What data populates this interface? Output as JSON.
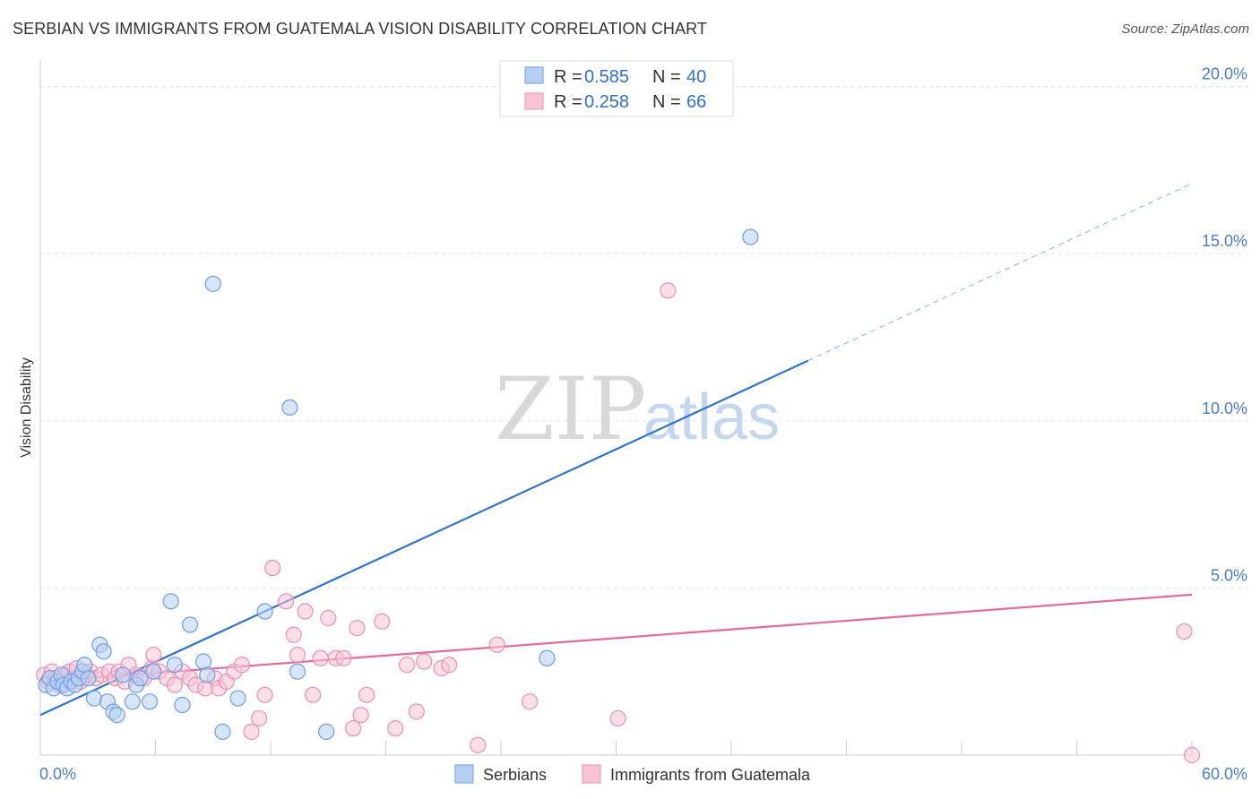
{
  "title": "SERBIAN VS IMMIGRANTS FROM GUATEMALA VISION DISABILITY CORRELATION CHART",
  "source": "Source: ZipAtlas.com",
  "watermark": {
    "zip": "ZIP",
    "atlas": "atlas"
  },
  "colors": {
    "blue": "#6d9ee6",
    "blue_fill": "#b7cff3",
    "pink": "#ee8fb0",
    "pink_fill": "#f7c4d5",
    "blue_line": "#2f74d0",
    "pink_line": "#e56a98"
  },
  "chart_data": {
    "type": "scatter",
    "title": "SERBIAN VS IMMIGRANTS FROM GUATEMALA VISION DISABILITY CORRELATION CHART",
    "ylabel": "Vision Disability",
    "xlabel": "",
    "xlim": [
      0,
      60
    ],
    "ylim": [
      0,
      20.5
    ],
    "x_tick_labels": [
      "0.0%",
      "60.0%"
    ],
    "y_ticks": [
      5,
      10,
      15,
      20
    ],
    "y_tick_labels": [
      "5.0%",
      "10.0%",
      "15.0%",
      "20.0%"
    ],
    "grid": true,
    "legend": [
      {
        "name": "Serbians",
        "r_label": "R = ",
        "r": "0.585",
        "n_label": "N = ",
        "n": "40"
      },
      {
        "name": "Immigrants from Guatemala",
        "r_label": "R = ",
        "r": "0.258",
        "n_label": "N = ",
        "n": "66"
      }
    ],
    "series": [
      {
        "name": "Serbians",
        "points": [
          [
            0.3,
            2.1
          ],
          [
            0.5,
            2.3
          ],
          [
            0.7,
            2.0
          ],
          [
            0.9,
            2.2
          ],
          [
            1.1,
            2.4
          ],
          [
            1.2,
            2.1
          ],
          [
            1.4,
            2.0
          ],
          [
            1.6,
            2.2
          ],
          [
            1.8,
            2.1
          ],
          [
            2.0,
            2.3
          ],
          [
            2.2,
            2.5
          ],
          [
            2.3,
            2.7
          ],
          [
            2.5,
            2.3
          ],
          [
            2.8,
            1.7
          ],
          [
            3.1,
            3.3
          ],
          [
            3.3,
            3.1
          ],
          [
            3.5,
            1.6
          ],
          [
            3.8,
            1.3
          ],
          [
            4.0,
            1.2
          ],
          [
            4.3,
            2.4
          ],
          [
            4.8,
            1.6
          ],
          [
            5.0,
            2.1
          ],
          [
            5.2,
            2.3
          ],
          [
            5.7,
            1.6
          ],
          [
            5.9,
            2.5
          ],
          [
            6.8,
            4.6
          ],
          [
            7.0,
            2.7
          ],
          [
            7.4,
            1.5
          ],
          [
            7.8,
            3.9
          ],
          [
            8.5,
            2.8
          ],
          [
            8.7,
            2.4
          ],
          [
            9.0,
            14.1
          ],
          [
            9.5,
            0.7
          ],
          [
            10.3,
            1.7
          ],
          [
            11.7,
            4.3
          ],
          [
            13.0,
            10.4
          ],
          [
            13.4,
            2.5
          ],
          [
            14.9,
            0.7
          ],
          [
            26.4,
            2.9
          ],
          [
            37.0,
            15.5
          ]
        ],
        "trend": {
          "x0": 0,
          "y0": 1.2,
          "x1": 40.0,
          "y1": 11.8,
          "dash_x1": 60.0,
          "dash_y1": 17.1
        }
      },
      {
        "name": "Immigrants from Guatemala",
        "points": [
          [
            0.2,
            2.4
          ],
          [
            0.4,
            2.2
          ],
          [
            0.6,
            2.5
          ],
          [
            0.8,
            2.3
          ],
          [
            1.0,
            2.1
          ],
          [
            1.3,
            2.4
          ],
          [
            1.5,
            2.5
          ],
          [
            1.7,
            2.3
          ],
          [
            1.9,
            2.6
          ],
          [
            2.1,
            2.2
          ],
          [
            2.4,
            2.4
          ],
          [
            2.6,
            2.5
          ],
          [
            2.9,
            2.3
          ],
          [
            3.2,
            2.4
          ],
          [
            3.6,
            2.5
          ],
          [
            3.9,
            2.3
          ],
          [
            4.1,
            2.5
          ],
          [
            4.4,
            2.2
          ],
          [
            4.6,
            2.7
          ],
          [
            5.0,
            2.4
          ],
          [
            5.4,
            2.3
          ],
          [
            5.8,
            2.6
          ],
          [
            5.9,
            3.0
          ],
          [
            6.2,
            2.5
          ],
          [
            6.6,
            2.3
          ],
          [
            7.0,
            2.1
          ],
          [
            7.4,
            2.5
          ],
          [
            7.8,
            2.3
          ],
          [
            8.1,
            2.1
          ],
          [
            8.6,
            2.0
          ],
          [
            9.1,
            2.3
          ],
          [
            9.3,
            2.0
          ],
          [
            9.7,
            2.2
          ],
          [
            10.1,
            2.5
          ],
          [
            10.5,
            2.7
          ],
          [
            11.0,
            0.7
          ],
          [
            11.4,
            1.1
          ],
          [
            11.7,
            1.8
          ],
          [
            12.1,
            5.6
          ],
          [
            12.8,
            4.6
          ],
          [
            13.2,
            3.6
          ],
          [
            13.4,
            3.0
          ],
          [
            13.8,
            4.3
          ],
          [
            14.2,
            1.8
          ],
          [
            14.6,
            2.9
          ],
          [
            15.0,
            4.1
          ],
          [
            15.4,
            2.9
          ],
          [
            15.8,
            2.9
          ],
          [
            16.3,
            0.8
          ],
          [
            16.5,
            3.8
          ],
          [
            16.7,
            1.2
          ],
          [
            17.0,
            1.8
          ],
          [
            17.8,
            4.0
          ],
          [
            18.5,
            0.8
          ],
          [
            19.1,
            2.7
          ],
          [
            19.6,
            1.3
          ],
          [
            20.0,
            2.8
          ],
          [
            20.9,
            2.6
          ],
          [
            21.3,
            2.7
          ],
          [
            22.8,
            0.3
          ],
          [
            23.8,
            3.3
          ],
          [
            25.5,
            1.6
          ],
          [
            30.1,
            1.1
          ],
          [
            32.7,
            13.9
          ],
          [
            59.6,
            3.7
          ],
          [
            60.0,
            0.0
          ]
        ],
        "trend": {
          "x0": 0,
          "y0": 2.2,
          "x1": 60.0,
          "y1": 4.8
        }
      }
    ]
  }
}
